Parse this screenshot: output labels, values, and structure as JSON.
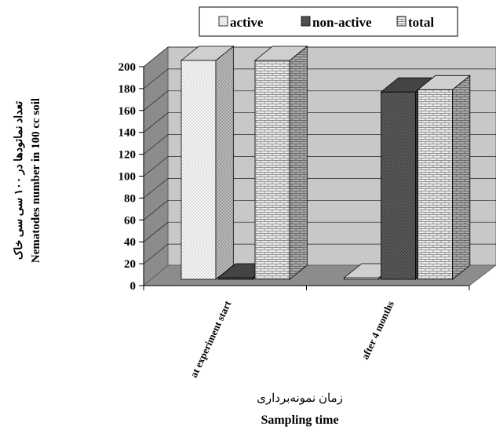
{
  "chart_data": {
    "type": "bar",
    "style": "3d-clustered-column",
    "categories": [
      "at experiment start",
      "after 4 months"
    ],
    "series": [
      {
        "name": "active",
        "values": [
          200,
          0
        ],
        "pattern": "dots",
        "color": "#f4f4f4"
      },
      {
        "name": "non-active",
        "values": [
          0,
          172
        ],
        "pattern": "dark",
        "color": "#555555"
      },
      {
        "name": "total",
        "values": [
          200,
          174
        ],
        "pattern": "brick",
        "color": "#e6e6e6"
      }
    ],
    "yticks": [
      "0",
      "20",
      "40",
      "60",
      "80",
      "100",
      "120",
      "140",
      "160",
      "180",
      "200"
    ],
    "ylim": [
      0,
      200
    ],
    "ylabel_fa": "تعداد نماتودها در ۱۰۰ سی سی خاک",
    "ylabel_en": "Nematodes number in 100 cc soil",
    "xlabel_fa": "زمان نمونه‌برداری",
    "xlabel_en": "Sampling time",
    "grid": true,
    "legend_position": "top",
    "wall_color": "#c8c8c8",
    "floor_color": "#8c8c8c"
  }
}
